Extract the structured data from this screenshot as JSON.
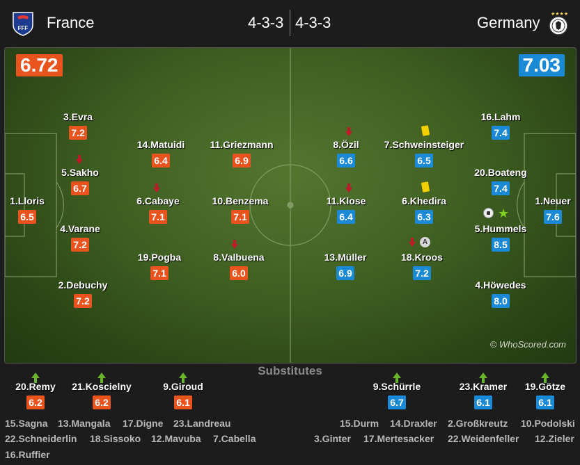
{
  "header": {
    "home_team": "France",
    "away_team": "Germany",
    "home_formation": "4-3-3",
    "away_formation": "4-3-3",
    "home_crest_icon": "fff-crest-icon",
    "away_crest_icon": "dfb-crest-icon"
  },
  "ratings": {
    "home": "6.72",
    "away": "7.03"
  },
  "colors": {
    "home": "#e8531e",
    "away": "#1a8ad6",
    "pitch": "#4a6b2a"
  },
  "home_players": [
    {
      "name": "1.Lloris",
      "rating": "6.5"
    },
    {
      "name": "3.Evra",
      "rating": "7.2"
    },
    {
      "name": "5.Sakho",
      "rating": "6.7"
    },
    {
      "name": "4.Varane",
      "rating": "7.2"
    },
    {
      "name": "2.Debuchy",
      "rating": "7.2"
    },
    {
      "name": "14.Matuidi",
      "rating": "6.4"
    },
    {
      "name": "6.Cabaye",
      "rating": "7.1"
    },
    {
      "name": "19.Pogba",
      "rating": "7.1"
    },
    {
      "name": "11.Griezmann",
      "rating": "6.9"
    },
    {
      "name": "10.Benzema",
      "rating": "7.1"
    },
    {
      "name": "8.Valbuena",
      "rating": "6.0"
    }
  ],
  "away_players": [
    {
      "name": "8.Özil",
      "rating": "6.6"
    },
    {
      "name": "11.Klose",
      "rating": "6.4"
    },
    {
      "name": "13.Müller",
      "rating": "6.9"
    },
    {
      "name": "7.Schweinsteiger",
      "rating": "6.5"
    },
    {
      "name": "6.Khedira",
      "rating": "6.3"
    },
    {
      "name": "18.Kroos",
      "rating": "7.2"
    },
    {
      "name": "16.Lahm",
      "rating": "7.4"
    },
    {
      "name": "20.Boateng",
      "rating": "7.4"
    },
    {
      "name": "5.Hummels",
      "rating": "8.5"
    },
    {
      "name": "4.Höwedes",
      "rating": "8.0"
    },
    {
      "name": "1.Neuer",
      "rating": "7.6"
    }
  ],
  "captain_mark": "A",
  "watermark": "© WhoScored.com",
  "substitutes": {
    "title": "Substitutes",
    "home": [
      {
        "name": "20.Remy",
        "rating": "6.2"
      },
      {
        "name": "21.Koscielny",
        "rating": "6.2"
      },
      {
        "name": "9.Giroud",
        "rating": "6.1"
      }
    ],
    "away": [
      {
        "name": "9.Schürrle",
        "rating": "6.7"
      },
      {
        "name": "23.Kramer",
        "rating": "6.1"
      },
      {
        "name": "19.Götze",
        "rating": "6.1"
      }
    ]
  },
  "bench": {
    "home_row1": [
      "15.Sagna",
      "13.Mangala",
      "17.Digne",
      "23.Landreau"
    ],
    "home_row2": [
      "22.Schneiderlin",
      "18.Sissoko",
      "12.Mavuba",
      "7.Cabella"
    ],
    "home_row3": [
      "16.Ruffier"
    ],
    "away_row1": [
      "15.Durm",
      "14.Draxler",
      "2.Großkreutz",
      "10.Podolski"
    ],
    "away_row2": [
      "3.Ginter",
      "17.Mertesacker",
      "22.Weidenfeller",
      "12.Zieler"
    ]
  }
}
